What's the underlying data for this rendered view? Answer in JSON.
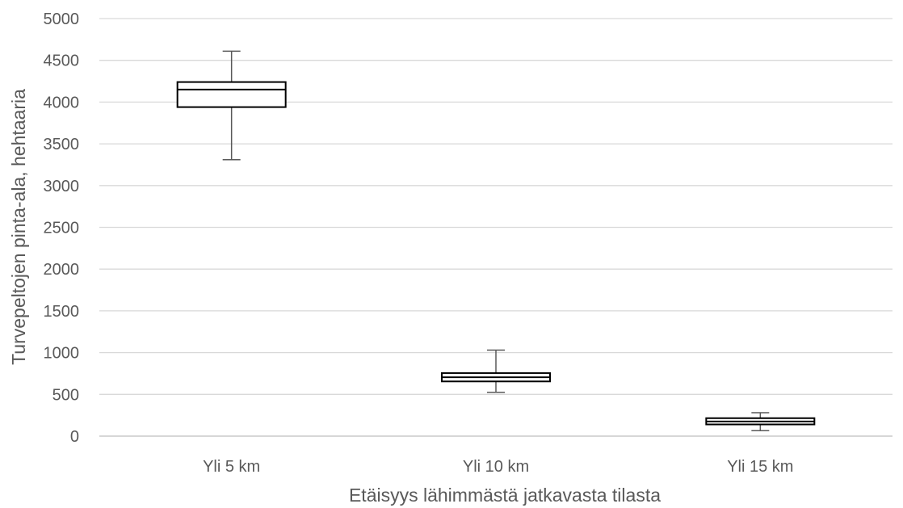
{
  "chart_data": {
    "type": "boxplot",
    "xlabel": "Etäisyys lähimmästä jatkavasta tilasta",
    "ylabel": "Turvepeltojen pinta-ala, hehtaaria",
    "ylim": [
      0,
      5000
    ],
    "yticks": [
      0,
      500,
      1000,
      1500,
      2000,
      2500,
      3000,
      3500,
      4000,
      4500,
      5000
    ],
    "grid": true,
    "legend": "none",
    "categories": [
      "Yli 5 km",
      "Yli 10 km",
      "Yli 15 km"
    ],
    "boxes": [
      {
        "category": "Yli 5 km",
        "min": 3310,
        "q1": 3940,
        "median": 4150,
        "q3": 4240,
        "max": 4610
      },
      {
        "category": "Yli 10 km",
        "min": 525,
        "q1": 655,
        "median": 705,
        "q3": 755,
        "max": 1030
      },
      {
        "category": "Yli 15 km",
        "min": 65,
        "q1": 140,
        "median": 175,
        "q3": 215,
        "max": 280
      }
    ]
  }
}
